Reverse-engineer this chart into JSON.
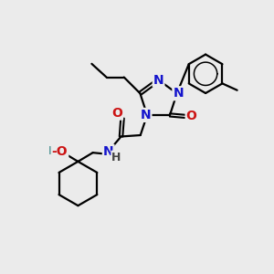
{
  "bg_color": "#ebebeb",
  "atom_color_N": "#1414cc",
  "atom_color_O": "#cc1414",
  "atom_color_HO": "#4a9090",
  "bond_color": "#000000",
  "bond_width": 1.6,
  "fig_w": 3.0,
  "fig_h": 3.0,
  "dpi": 100,
  "xlim": [
    0,
    10
  ],
  "ylim": [
    0,
    10
  ]
}
